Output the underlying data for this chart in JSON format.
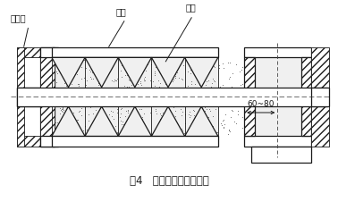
{
  "title": "图4   端部叶片去掉示意图",
  "label_ball_bearing": "球轴承",
  "label_shell": "壳体",
  "label_screw": "绞龙",
  "dim_label": "60~80",
  "bg_color": "#ffffff",
  "line_color": "#1a1a1a",
  "title_fontsize": 8.5,
  "annotation_fontsize": 7
}
